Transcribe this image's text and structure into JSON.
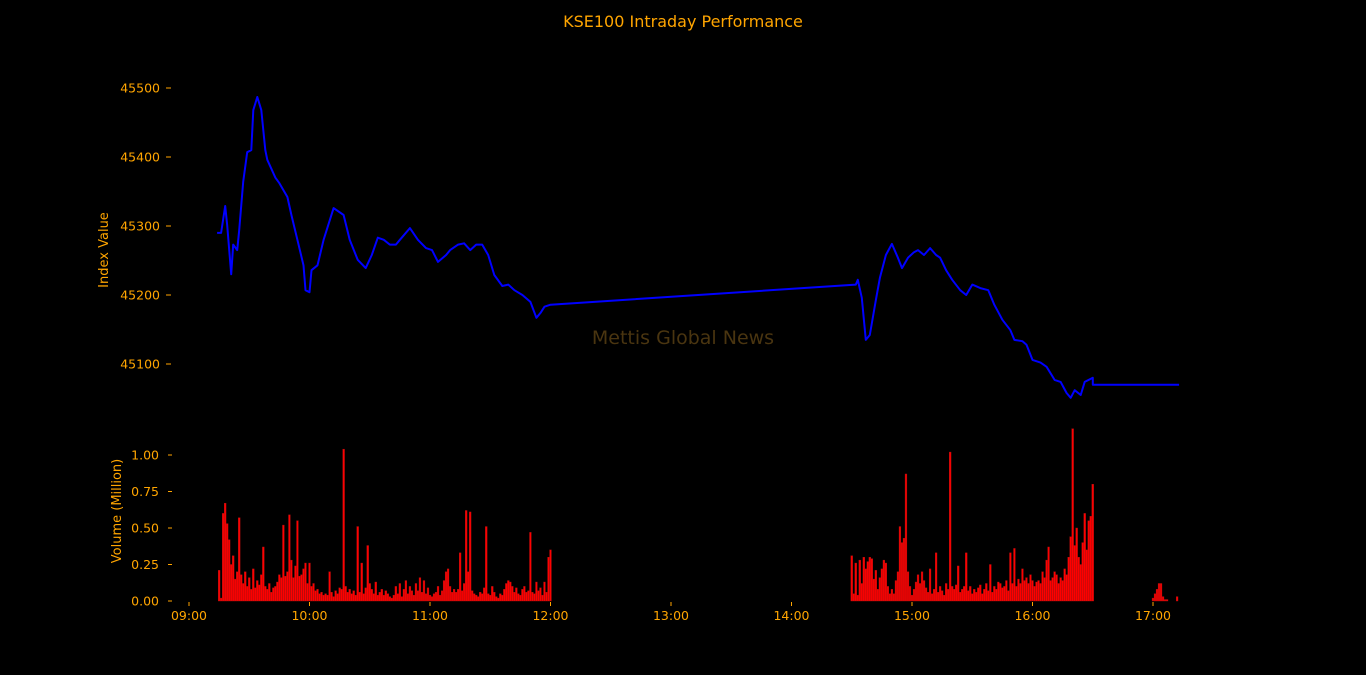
{
  "chart_data": [
    {
      "type": "line",
      "title": "KSE100 Intraday Performance",
      "ylabel": "Index Value",
      "xlabel": "",
      "ylim": [
        45040,
        45500
      ],
      "yticks": [
        45100,
        45200,
        45300,
        45400,
        45500
      ],
      "yticklabels": [
        "45100",
        "45200",
        "45300",
        "45400",
        "45500"
      ],
      "watermark": "Mettis Global News",
      "series": [
        {
          "name": "KSE100",
          "color": "#0000ff",
          "points": [
            [
              "09:14",
              45290
            ],
            [
              "09:16",
              45290
            ],
            [
              "09:18",
              45329
            ],
            [
              "09:19",
              45301
            ],
            [
              "09:21",
              45230
            ],
            [
              "09:22",
              45273
            ],
            [
              "09:24",
              45265
            ],
            [
              "09:25",
              45294
            ],
            [
              "09:27",
              45364
            ],
            [
              "09:29",
              45407
            ],
            [
              "09:31",
              45410
            ],
            [
              "09:32",
              45468
            ],
            [
              "09:34",
              45487
            ],
            [
              "09:36",
              45468
            ],
            [
              "09:38",
              45410
            ],
            [
              "09:39",
              45396
            ],
            [
              "09:43",
              45370
            ],
            [
              "09:45",
              45362
            ],
            [
              "09:49",
              45342
            ],
            [
              "09:51",
              45316
            ],
            [
              "09:54",
              45280
            ],
            [
              "09:57",
              45243
            ],
            [
              "09:58",
              45207
            ],
            [
              "10:00",
              45204
            ],
            [
              "10:01",
              45236
            ],
            [
              "10:04",
              45243
            ],
            [
              "10:07",
              45280
            ],
            [
              "10:12",
              45326
            ],
            [
              "10:17",
              45316
            ],
            [
              "10:20",
              45280
            ],
            [
              "10:24",
              45251
            ],
            [
              "10:28",
              45239
            ],
            [
              "10:31",
              45258
            ],
            [
              "10:34",
              45283
            ],
            [
              "10:37",
              45280
            ],
            [
              "10:40",
              45273
            ],
            [
              "10:43",
              45273
            ],
            [
              "10:45",
              45280
            ],
            [
              "10:50",
              45297
            ],
            [
              "10:54",
              45280
            ],
            [
              "10:58",
              45268
            ],
            [
              "11:01",
              45265
            ],
            [
              "11:04",
              45248
            ],
            [
              "11:08",
              45258
            ],
            [
              "11:10",
              45265
            ],
            [
              "11:14",
              45273
            ],
            [
              "11:17",
              45275
            ],
            [
              "11:20",
              45265
            ],
            [
              "11:23",
              45273
            ],
            [
              "11:26",
              45273
            ],
            [
              "11:29",
              45258
            ],
            [
              "11:32",
              45229
            ],
            [
              "11:36",
              45213
            ],
            [
              "11:39",
              45215
            ],
            [
              "11:42",
              45207
            ],
            [
              "11:46",
              45200
            ],
            [
              "11:50",
              45190
            ],
            [
              "11:53",
              45167
            ],
            [
              "11:55",
              45174
            ],
            [
              "11:57",
              45183
            ],
            [
              "12:00",
              45186
            ],
            [
              "14:32",
              45215
            ],
            [
              "14:33",
              45222
            ],
            [
              "14:35",
              45196
            ],
            [
              "14:37",
              45135
            ],
            [
              "14:39",
              45142
            ],
            [
              "14:42",
              45193
            ],
            [
              "14:44",
              45225
            ],
            [
              "14:47",
              45258
            ],
            [
              "14:50",
              45274
            ],
            [
              "14:53",
              45254
            ],
            [
              "14:55",
              45239
            ],
            [
              "14:58",
              45254
            ],
            [
              "15:01",
              45262
            ],
            [
              "15:03",
              45265
            ],
            [
              "15:06",
              45258
            ],
            [
              "15:09",
              45268
            ],
            [
              "15:12",
              45258
            ],
            [
              "15:14",
              45254
            ],
            [
              "15:17",
              45236
            ],
            [
              "15:20",
              45222
            ],
            [
              "15:24",
              45207
            ],
            [
              "15:27",
              45200
            ],
            [
              "15:30",
              45215
            ],
            [
              "15:34",
              45210
            ],
            [
              "15:38",
              45207
            ],
            [
              "15:41",
              45186
            ],
            [
              "15:45",
              45164
            ],
            [
              "15:49",
              45149
            ],
            [
              "15:51",
              45135
            ],
            [
              "15:55",
              45133
            ],
            [
              "15:57",
              45128
            ],
            [
              "16:00",
              45106
            ],
            [
              "16:04",
              45102
            ],
            [
              "16:07",
              45096
            ],
            [
              "16:11",
              45077
            ],
            [
              "16:14",
              45074
            ],
            [
              "16:17",
              45058
            ],
            [
              "16:19",
              45051
            ],
            [
              "16:21",
              45062
            ],
            [
              "16:24",
              45055
            ],
            [
              "16:26",
              45074
            ],
            [
              "16:30",
              45080
            ],
            [
              "16:30",
              45070
            ],
            [
              "17:13",
              45070
            ]
          ]
        }
      ]
    },
    {
      "type": "bar",
      "ylabel": "Volume (Million)",
      "ylim": [
        0,
        1.2
      ],
      "yticks": [
        0,
        0.25,
        0.5,
        0.75,
        1.0
      ],
      "yticklabels": [
        "0.00",
        "0.25",
        "0.50",
        "0.75",
        "1.00"
      ],
      "xticks": [
        "09:00",
        "10:00",
        "11:00",
        "12:00",
        "13:00",
        "14:00",
        "15:00",
        "16:00",
        "17:00"
      ],
      "color": "#ff0000",
      "bar_interval_minutes": 1,
      "sessions": [
        {
          "start": "09:15",
          "values": [
            0.21,
            0.02,
            0.6,
            0.67,
            0.53,
            0.42,
            0.25,
            0.31,
            0.15,
            0.2,
            0.57,
            0.18,
            0.12,
            0.2,
            0.1,
            0.16,
            0.08,
            0.22,
            0.09,
            0.14,
            0.11,
            0.18,
            0.37,
            0.1,
            0.08,
            0.12,
            0.06,
            0.09,
            0.1,
            0.13,
            0.18,
            0.16,
            0.52,
            0.17,
            0.2,
            0.59,
            0.28,
            0.16,
            0.24,
            0.55,
            0.17,
            0.18,
            0.22,
            0.26,
            0.12,
            0.26,
            0.1,
            0.12,
            0.07,
            0.08,
            0.05,
            0.06,
            0.04,
            0.05,
            0.04,
            0.2,
            0.06,
            0.03,
            0.07,
            0.05,
            0.09,
            0.08,
            1.04,
            0.1,
            0.06,
            0.08,
            0.05,
            0.07,
            0.04,
            0.51,
            0.06,
            0.26,
            0.05,
            0.09,
            0.38,
            0.12,
            0.08,
            0.05,
            0.13,
            0.04,
            0.06,
            0.08,
            0.04,
            0.07,
            0.05,
            0.03,
            0.02,
            0.04,
            0.1,
            0.05,
            0.12,
            0.03,
            0.08,
            0.14,
            0.05,
            0.1,
            0.07,
            0.04,
            0.12,
            0.07,
            0.16,
            0.06,
            0.14,
            0.05,
            0.09,
            0.04,
            0.03,
            0.05,
            0.06,
            0.1,
            0.04,
            0.07,
            0.14,
            0.2,
            0.22,
            0.1,
            0.06,
            0.08,
            0.06,
            0.08,
            0.33,
            0.07,
            0.12,
            0.62,
            0.2,
            0.61,
            0.07,
            0.05,
            0.04,
            0.03,
            0.06,
            0.05,
            0.09,
            0.51,
            0.05,
            0.04,
            0.1,
            0.06,
            0.03,
            0.02,
            0.05,
            0.04,
            0.08,
            0.12,
            0.14,
            0.13,
            0.1,
            0.06,
            0.09,
            0.05,
            0.04,
            0.08,
            0.1,
            0.06,
            0.07,
            0.47,
            0.06,
            0.05,
            0.13,
            0.07,
            0.09,
            0.04,
            0.13,
            0.06,
            0.3,
            0.35
          ]
        },
        {
          "start": "14:30",
          "values": [
            0.31,
            0.05,
            0.26,
            0.04,
            0.28,
            0.12,
            0.3,
            0.22,
            0.27,
            0.3,
            0.29,
            0.15,
            0.21,
            0.08,
            0.16,
            0.22,
            0.28,
            0.26,
            0.1,
            0.05,
            0.08,
            0.05,
            0.14,
            0.2,
            0.51,
            0.4,
            0.43,
            0.87,
            0.2,
            0.1,
            0.04,
            0.08,
            0.13,
            0.18,
            0.12,
            0.2,
            0.14,
            0.09,
            0.06,
            0.22,
            0.05,
            0.08,
            0.33,
            0.06,
            0.1,
            0.07,
            0.04,
            0.12,
            0.08,
            1.02,
            0.1,
            0.08,
            0.11,
            0.24,
            0.06,
            0.08,
            0.1,
            0.33,
            0.07,
            0.1,
            0.05,
            0.08,
            0.06,
            0.09,
            0.11,
            0.05,
            0.08,
            0.12,
            0.07,
            0.25,
            0.06,
            0.1,
            0.08,
            0.13,
            0.12,
            0.09,
            0.1,
            0.14,
            0.07,
            0.33,
            0.12,
            0.36,
            0.1,
            0.15,
            0.12,
            0.22,
            0.14,
            0.16,
            0.12,
            0.18,
            0.14,
            0.1,
            0.13,
            0.14,
            0.12,
            0.2,
            0.16,
            0.28,
            0.37,
            0.14,
            0.16,
            0.2,
            0.18,
            0.12,
            0.16,
            0.14,
            0.22,
            0.18,
            0.3,
            0.44,
            1.18,
            0.38,
            0.5,
            0.3,
            0.25,
            0.4,
            0.6,
            0.35,
            0.55,
            0.58,
            0.8
          ]
        },
        {
          "start": "17:00",
          "values": [
            0.02,
            0.05,
            0.08,
            0.12,
            0.12,
            0.03,
            0.01,
            0.01,
            0,
            0,
            0,
            0,
            0.03
          ]
        }
      ]
    }
  ],
  "theme": {
    "text": "#ffa500",
    "background": "#000000",
    "watermark": "#4a3510"
  }
}
